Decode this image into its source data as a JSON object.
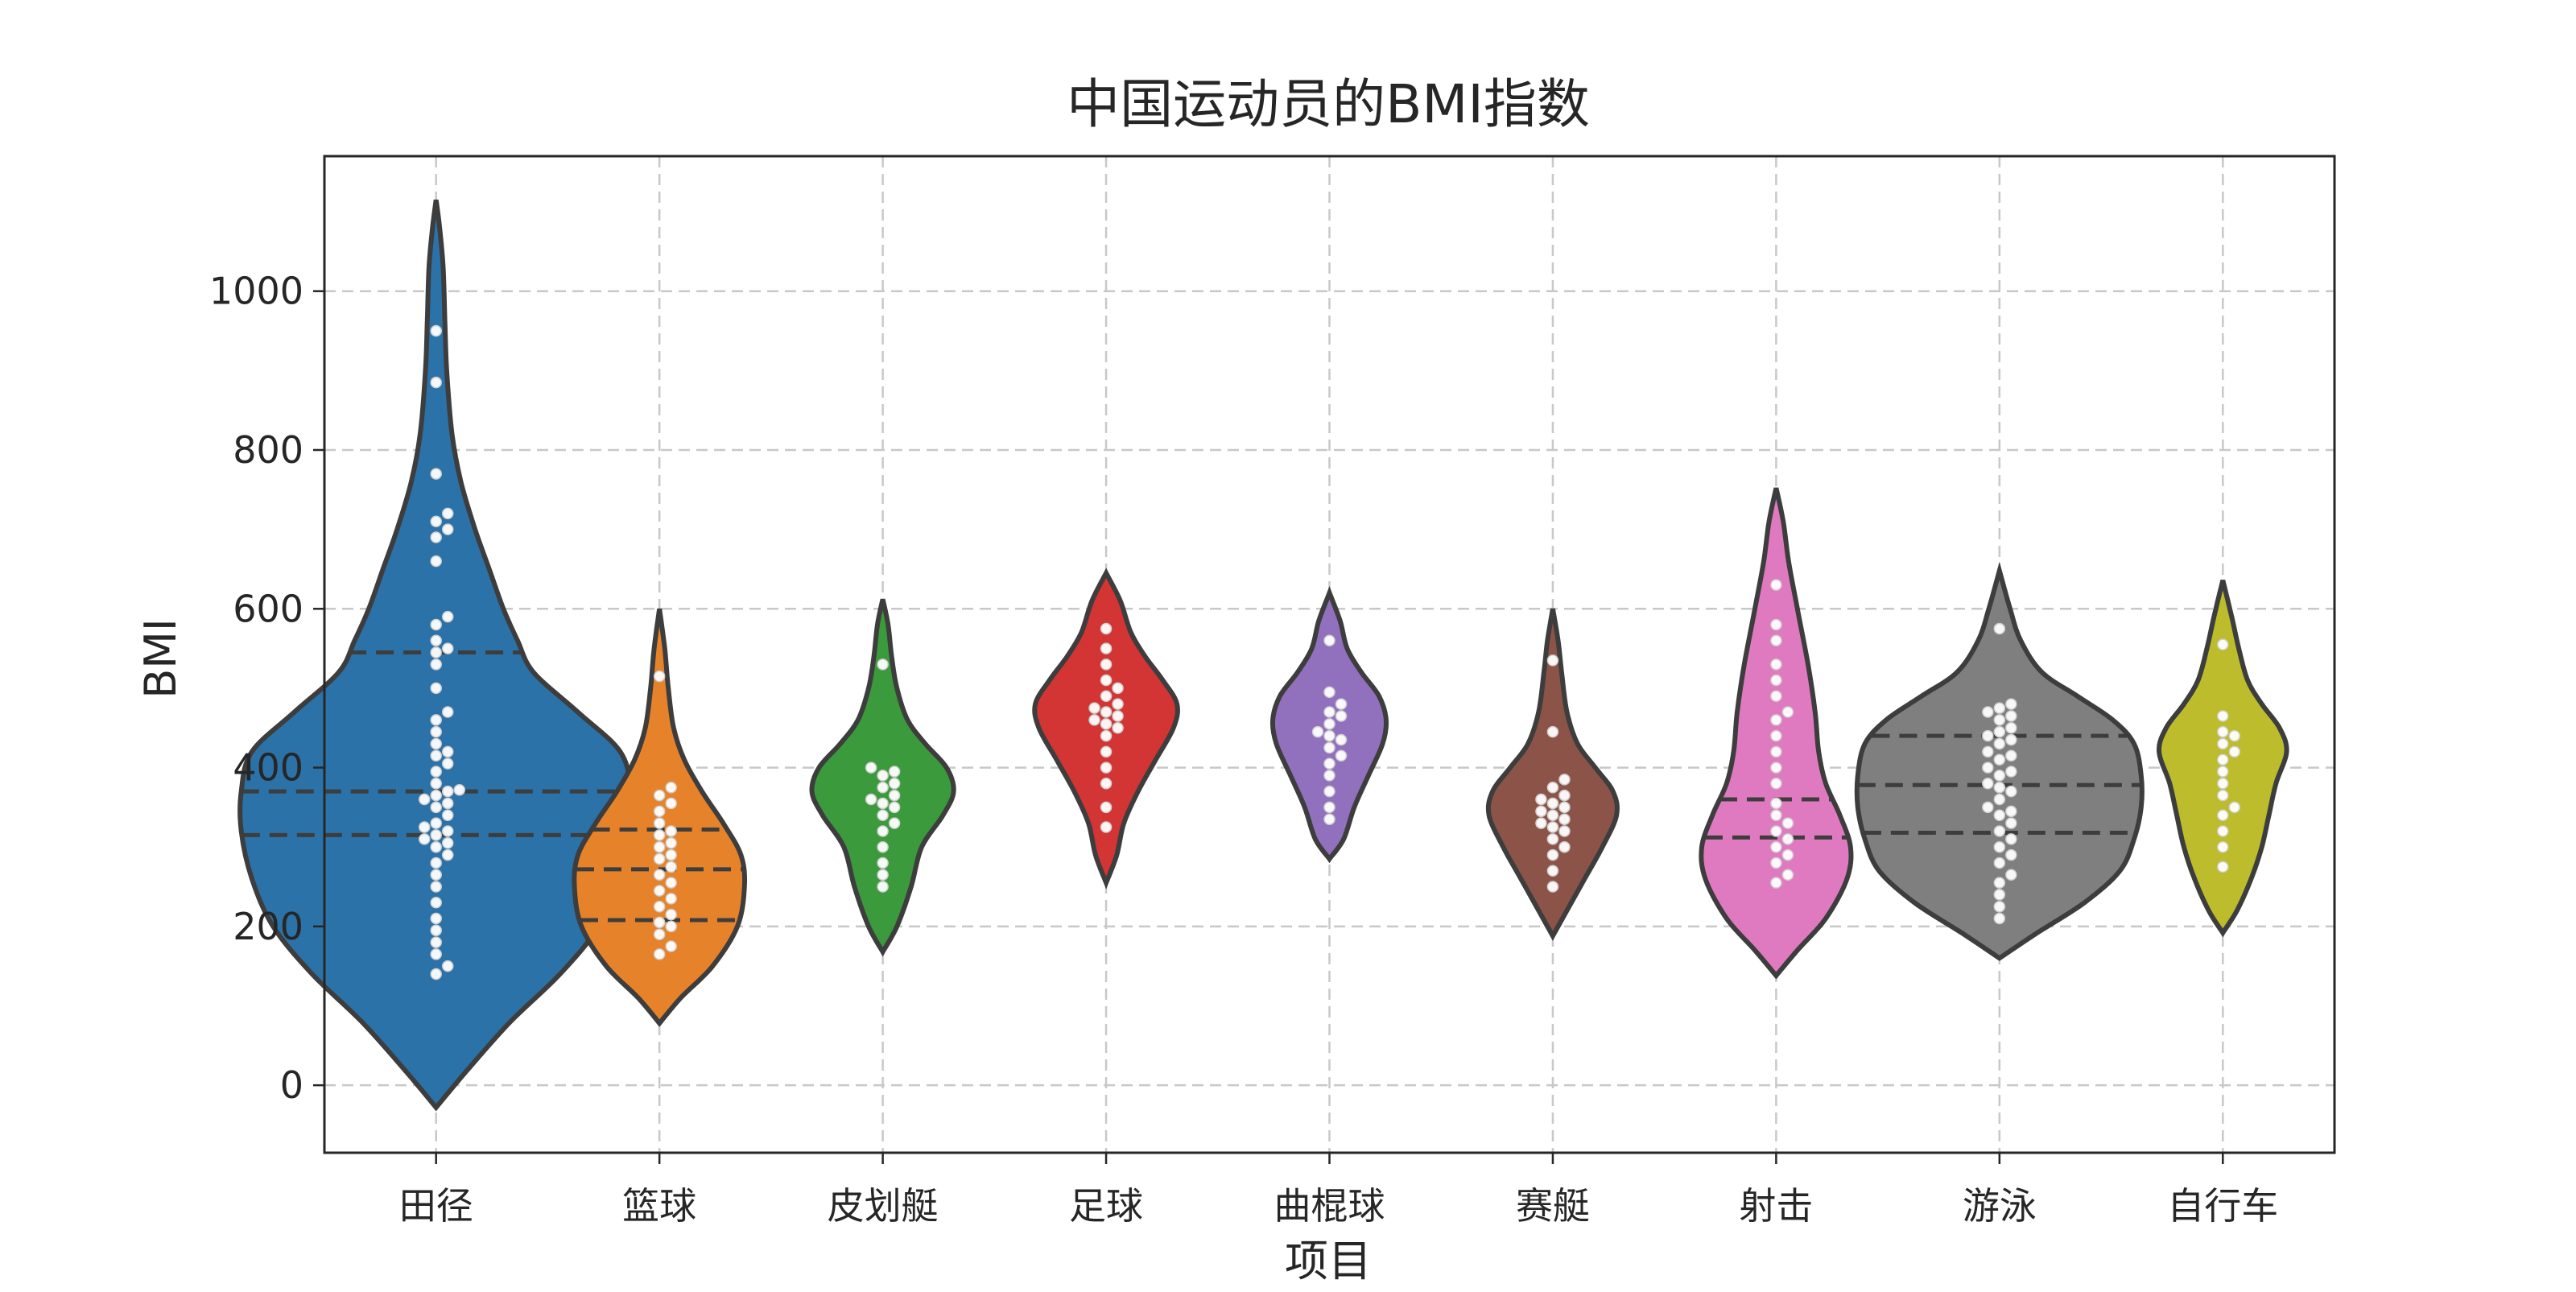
{
  "chart_data": {
    "type": "violin",
    "title": "中国运动员的BMI指数",
    "xlabel": "项目",
    "ylabel": "BMI",
    "ylim": [
      -85,
      1170
    ],
    "yticks": [
      0,
      200,
      400,
      600,
      800,
      1000
    ],
    "grid": true,
    "categories": [
      "田径",
      "篮球",
      "皮划艇",
      "足球",
      "曲棍球",
      "赛艇",
      "射击",
      "游泳",
      "自行车"
    ],
    "colors": [
      "#2b72a8",
      "#e6832a",
      "#3b9a3c",
      "#d33534",
      "#9170bd",
      "#8c5448",
      "#e07ac0",
      "#7f7f7f",
      "#bcbc2d"
    ],
    "series": [
      {
        "category": "田径",
        "range": [
          -28,
          1115
        ],
        "max_halfwidth": 110,
        "quartiles": [
          315,
          370,
          545
        ],
        "profile": [
          [
            -28,
            0
          ],
          [
            20,
            18
          ],
          [
            80,
            42
          ],
          [
            140,
            70
          ],
          [
            200,
            92
          ],
          [
            260,
            104
          ],
          [
            320,
            110
          ],
          [
            370,
            110
          ],
          [
            420,
            104
          ],
          [
            470,
            80
          ],
          [
            520,
            55
          ],
          [
            560,
            46
          ],
          [
            600,
            38
          ],
          [
            650,
            30
          ],
          [
            700,
            22
          ],
          [
            760,
            14
          ],
          [
            820,
            9
          ],
          [
            900,
            6
          ],
          [
            960,
            5
          ],
          [
            1030,
            4
          ],
          [
            1080,
            2
          ],
          [
            1115,
            0
          ]
        ],
        "points": [
          140,
          150,
          165,
          180,
          195,
          210,
          230,
          250,
          265,
          280,
          290,
          300,
          305,
          310,
          315,
          320,
          325,
          330,
          340,
          350,
          355,
          360,
          365,
          370,
          372,
          380,
          395,
          405,
          415,
          420,
          430,
          445,
          460,
          470,
          500,
          530,
          545,
          550,
          560,
          580,
          590,
          660,
          690,
          700,
          710,
          720,
          770,
          885,
          950
        ]
      },
      {
        "category": "篮球",
        "range": [
          78,
          600
        ],
        "max_halfwidth": 48,
        "quartiles": [
          208,
          272,
          322
        ],
        "profile": [
          [
            78,
            0
          ],
          [
            110,
            12
          ],
          [
            150,
            30
          ],
          [
            200,
            44
          ],
          [
            250,
            48
          ],
          [
            290,
            46
          ],
          [
            330,
            36
          ],
          [
            370,
            24
          ],
          [
            410,
            14
          ],
          [
            450,
            8
          ],
          [
            500,
            5
          ],
          [
            550,
            3
          ],
          [
            600,
            0
          ]
        ],
        "points": [
          165,
          175,
          190,
          200,
          205,
          215,
          225,
          235,
          245,
          255,
          265,
          275,
          285,
          290,
          300,
          305,
          315,
          320,
          330,
          345,
          355,
          365,
          375,
          515
        ]
      },
      {
        "category": "皮划艇",
        "range": [
          168,
          612
        ],
        "max_halfwidth": 40,
        "quartiles": [],
        "profile": [
          [
            168,
            0
          ],
          [
            200,
            8
          ],
          [
            250,
            16
          ],
          [
            300,
            22
          ],
          [
            340,
            34
          ],
          [
            370,
            40
          ],
          [
            400,
            36
          ],
          [
            430,
            24
          ],
          [
            460,
            14
          ],
          [
            500,
            8
          ],
          [
            540,
            5
          ],
          [
            580,
            3
          ],
          [
            612,
            0
          ]
        ],
        "points": [
          250,
          265,
          280,
          300,
          320,
          330,
          340,
          350,
          355,
          360,
          365,
          375,
          380,
          390,
          395,
          400,
          530
        ]
      },
      {
        "category": "足球",
        "range": [
          255,
          645
        ],
        "max_halfwidth": 40,
        "quartiles": [],
        "profile": [
          [
            255,
            0
          ],
          [
            290,
            6
          ],
          [
            330,
            10
          ],
          [
            370,
            18
          ],
          [
            410,
            28
          ],
          [
            450,
            38
          ],
          [
            480,
            40
          ],
          [
            510,
            32
          ],
          [
            540,
            22
          ],
          [
            570,
            14
          ],
          [
            610,
            8
          ],
          [
            645,
            0
          ]
        ],
        "points": [
          325,
          350,
          380,
          400,
          420,
          440,
          450,
          455,
          460,
          465,
          470,
          475,
          480,
          490,
          500,
          510,
          530,
          550,
          575
        ]
      },
      {
        "category": "曲棍球",
        "range": [
          285,
          620
        ],
        "max_halfwidth": 32,
        "quartiles": [],
        "profile": [
          [
            285,
            0
          ],
          [
            310,
            8
          ],
          [
            350,
            14
          ],
          [
            390,
            22
          ],
          [
            430,
            30
          ],
          [
            460,
            32
          ],
          [
            490,
            28
          ],
          [
            520,
            18
          ],
          [
            550,
            10
          ],
          [
            585,
            6
          ],
          [
            620,
            0
          ]
        ],
        "points": [
          335,
          350,
          370,
          390,
          405,
          415,
          425,
          435,
          440,
          445,
          455,
          465,
          470,
          480,
          495,
          560
        ]
      },
      {
        "category": "赛艇",
        "range": [
          188,
          600
        ],
        "max_halfwidth": 36,
        "quartiles": [],
        "profile": [
          [
            188,
            0
          ],
          [
            220,
            8
          ],
          [
            260,
            18
          ],
          [
            300,
            28
          ],
          [
            340,
            36
          ],
          [
            370,
            34
          ],
          [
            400,
            24
          ],
          [
            430,
            14
          ],
          [
            470,
            8
          ],
          [
            520,
            5
          ],
          [
            560,
            3
          ],
          [
            600,
            0
          ]
        ],
        "points": [
          250,
          270,
          290,
          300,
          310,
          320,
          325,
          330,
          335,
          340,
          345,
          350,
          355,
          360,
          365,
          375,
          385,
          445,
          535
        ]
      },
      {
        "category": "射击",
        "range": [
          138,
          752
        ],
        "max_halfwidth": 42,
        "quartiles": [
          312,
          360
        ],
        "profile": [
          [
            138,
            0
          ],
          [
            170,
            12
          ],
          [
            210,
            28
          ],
          [
            260,
            40
          ],
          [
            300,
            42
          ],
          [
            340,
            36
          ],
          [
            380,
            28
          ],
          [
            420,
            24
          ],
          [
            470,
            22
          ],
          [
            530,
            18
          ],
          [
            600,
            12
          ],
          [
            660,
            7
          ],
          [
            710,
            4
          ],
          [
            752,
            0
          ]
        ],
        "points": [
          255,
          265,
          280,
          290,
          300,
          310,
          320,
          330,
          340,
          355,
          380,
          400,
          420,
          440,
          460,
          470,
          490,
          510,
          530,
          560,
          580,
          630
        ]
      },
      {
        "category": "游泳",
        "range": [
          160,
          648
        ],
        "max_halfwidth": 80,
        "quartiles": [
          318,
          378,
          440
        ],
        "profile": [
          [
            160,
            0
          ],
          [
            190,
            20
          ],
          [
            230,
            48
          ],
          [
            270,
            68
          ],
          [
            310,
            76
          ],
          [
            350,
            80
          ],
          [
            390,
            80
          ],
          [
            430,
            76
          ],
          [
            460,
            64
          ],
          [
            490,
            44
          ],
          [
            520,
            24
          ],
          [
            560,
            12
          ],
          [
            600,
            6
          ],
          [
            648,
            0
          ]
        ],
        "points": [
          210,
          225,
          240,
          255,
          265,
          280,
          290,
          300,
          310,
          320,
          330,
          340,
          345,
          350,
          360,
          370,
          375,
          380,
          390,
          395,
          400,
          410,
          415,
          420,
          430,
          435,
          440,
          445,
          450,
          460,
          465,
          470,
          475,
          480,
          575
        ]
      },
      {
        "category": "自行车",
        "range": [
          192,
          636
        ],
        "max_halfwidth": 36,
        "quartiles": [],
        "profile": [
          [
            192,
            0
          ],
          [
            220,
            8
          ],
          [
            260,
            16
          ],
          [
            300,
            22
          ],
          [
            340,
            26
          ],
          [
            380,
            30
          ],
          [
            420,
            36
          ],
          [
            450,
            32
          ],
          [
            480,
            22
          ],
          [
            510,
            14
          ],
          [
            550,
            9
          ],
          [
            590,
            5
          ],
          [
            636,
            0
          ]
        ],
        "points": [
          275,
          300,
          320,
          340,
          350,
          365,
          380,
          395,
          410,
          420,
          430,
          440,
          445,
          465,
          555
        ]
      }
    ]
  }
}
